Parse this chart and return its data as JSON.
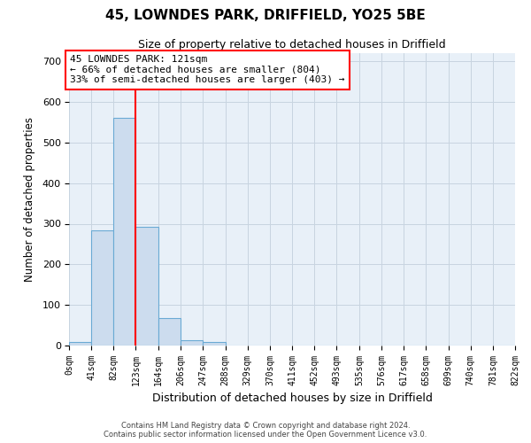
{
  "title": "45, LOWNDES PARK, DRIFFIELD, YO25 5BE",
  "subtitle": "Size of property relative to detached houses in Driffield",
  "xlabel": "Distribution of detached houses by size in Driffield",
  "ylabel": "Number of detached properties",
  "footer_line1": "Contains HM Land Registry data © Crown copyright and database right 2024.",
  "footer_line2": "Contains public sector information licensed under the Open Government Licence v3.0.",
  "bin_edges": [
    0,
    41,
    82,
    123,
    164,
    206,
    247,
    288,
    329,
    370,
    411,
    452,
    493,
    535,
    576,
    617,
    658,
    699,
    740,
    781,
    822
  ],
  "bar_heights": [
    8,
    283,
    560,
    293,
    68,
    13,
    9,
    0,
    0,
    0,
    0,
    0,
    0,
    0,
    0,
    0,
    0,
    0,
    0,
    0
  ],
  "bar_color": "#ccdcee",
  "bar_edgecolor": "#6aaad4",
  "bar_linewidth": 0.8,
  "grid_color": "#c8d4e0",
  "background_color": "#e8f0f8",
  "red_line_x": 123,
  "annotation_text": "45 LOWNDES PARK: 121sqm\n← 66% of detached houses are smaller (804)\n33% of semi-detached houses are larger (403) →",
  "annotation_box_facecolor": "white",
  "annotation_box_edgecolor": "red",
  "ylim": [
    0,
    720
  ],
  "yticks": [
    0,
    100,
    200,
    300,
    400,
    500,
    600,
    700
  ]
}
